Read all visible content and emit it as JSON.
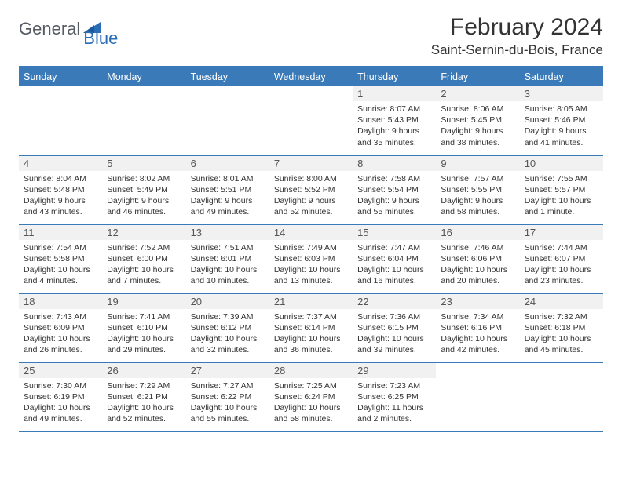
{
  "brand": {
    "part1": "General",
    "part2": "Blue"
  },
  "title": "February 2024",
  "location": "Saint-Sernin-du-Bois, France",
  "colors": {
    "header_bg": "#3a7ab8",
    "header_text": "#ffffff",
    "border": "#3a7ab8",
    "daynum_bg": "#f1f1f1",
    "text": "#333333"
  },
  "weekdays": [
    "Sunday",
    "Monday",
    "Tuesday",
    "Wednesday",
    "Thursday",
    "Friday",
    "Saturday"
  ],
  "weeks": [
    [
      {
        "n": "",
        "sr": "",
        "ss": "",
        "dl": ""
      },
      {
        "n": "",
        "sr": "",
        "ss": "",
        "dl": ""
      },
      {
        "n": "",
        "sr": "",
        "ss": "",
        "dl": ""
      },
      {
        "n": "",
        "sr": "",
        "ss": "",
        "dl": ""
      },
      {
        "n": "1",
        "sr": "Sunrise: 8:07 AM",
        "ss": "Sunset: 5:43 PM",
        "dl": "Daylight: 9 hours and 35 minutes."
      },
      {
        "n": "2",
        "sr": "Sunrise: 8:06 AM",
        "ss": "Sunset: 5:45 PM",
        "dl": "Daylight: 9 hours and 38 minutes."
      },
      {
        "n": "3",
        "sr": "Sunrise: 8:05 AM",
        "ss": "Sunset: 5:46 PM",
        "dl": "Daylight: 9 hours and 41 minutes."
      }
    ],
    [
      {
        "n": "4",
        "sr": "Sunrise: 8:04 AM",
        "ss": "Sunset: 5:48 PM",
        "dl": "Daylight: 9 hours and 43 minutes."
      },
      {
        "n": "5",
        "sr": "Sunrise: 8:02 AM",
        "ss": "Sunset: 5:49 PM",
        "dl": "Daylight: 9 hours and 46 minutes."
      },
      {
        "n": "6",
        "sr": "Sunrise: 8:01 AM",
        "ss": "Sunset: 5:51 PM",
        "dl": "Daylight: 9 hours and 49 minutes."
      },
      {
        "n": "7",
        "sr": "Sunrise: 8:00 AM",
        "ss": "Sunset: 5:52 PM",
        "dl": "Daylight: 9 hours and 52 minutes."
      },
      {
        "n": "8",
        "sr": "Sunrise: 7:58 AM",
        "ss": "Sunset: 5:54 PM",
        "dl": "Daylight: 9 hours and 55 minutes."
      },
      {
        "n": "9",
        "sr": "Sunrise: 7:57 AM",
        "ss": "Sunset: 5:55 PM",
        "dl": "Daylight: 9 hours and 58 minutes."
      },
      {
        "n": "10",
        "sr": "Sunrise: 7:55 AM",
        "ss": "Sunset: 5:57 PM",
        "dl": "Daylight: 10 hours and 1 minute."
      }
    ],
    [
      {
        "n": "11",
        "sr": "Sunrise: 7:54 AM",
        "ss": "Sunset: 5:58 PM",
        "dl": "Daylight: 10 hours and 4 minutes."
      },
      {
        "n": "12",
        "sr": "Sunrise: 7:52 AM",
        "ss": "Sunset: 6:00 PM",
        "dl": "Daylight: 10 hours and 7 minutes."
      },
      {
        "n": "13",
        "sr": "Sunrise: 7:51 AM",
        "ss": "Sunset: 6:01 PM",
        "dl": "Daylight: 10 hours and 10 minutes."
      },
      {
        "n": "14",
        "sr": "Sunrise: 7:49 AM",
        "ss": "Sunset: 6:03 PM",
        "dl": "Daylight: 10 hours and 13 minutes."
      },
      {
        "n": "15",
        "sr": "Sunrise: 7:47 AM",
        "ss": "Sunset: 6:04 PM",
        "dl": "Daylight: 10 hours and 16 minutes."
      },
      {
        "n": "16",
        "sr": "Sunrise: 7:46 AM",
        "ss": "Sunset: 6:06 PM",
        "dl": "Daylight: 10 hours and 20 minutes."
      },
      {
        "n": "17",
        "sr": "Sunrise: 7:44 AM",
        "ss": "Sunset: 6:07 PM",
        "dl": "Daylight: 10 hours and 23 minutes."
      }
    ],
    [
      {
        "n": "18",
        "sr": "Sunrise: 7:43 AM",
        "ss": "Sunset: 6:09 PM",
        "dl": "Daylight: 10 hours and 26 minutes."
      },
      {
        "n": "19",
        "sr": "Sunrise: 7:41 AM",
        "ss": "Sunset: 6:10 PM",
        "dl": "Daylight: 10 hours and 29 minutes."
      },
      {
        "n": "20",
        "sr": "Sunrise: 7:39 AM",
        "ss": "Sunset: 6:12 PM",
        "dl": "Daylight: 10 hours and 32 minutes."
      },
      {
        "n": "21",
        "sr": "Sunrise: 7:37 AM",
        "ss": "Sunset: 6:14 PM",
        "dl": "Daylight: 10 hours and 36 minutes."
      },
      {
        "n": "22",
        "sr": "Sunrise: 7:36 AM",
        "ss": "Sunset: 6:15 PM",
        "dl": "Daylight: 10 hours and 39 minutes."
      },
      {
        "n": "23",
        "sr": "Sunrise: 7:34 AM",
        "ss": "Sunset: 6:16 PM",
        "dl": "Daylight: 10 hours and 42 minutes."
      },
      {
        "n": "24",
        "sr": "Sunrise: 7:32 AM",
        "ss": "Sunset: 6:18 PM",
        "dl": "Daylight: 10 hours and 45 minutes."
      }
    ],
    [
      {
        "n": "25",
        "sr": "Sunrise: 7:30 AM",
        "ss": "Sunset: 6:19 PM",
        "dl": "Daylight: 10 hours and 49 minutes."
      },
      {
        "n": "26",
        "sr": "Sunrise: 7:29 AM",
        "ss": "Sunset: 6:21 PM",
        "dl": "Daylight: 10 hours and 52 minutes."
      },
      {
        "n": "27",
        "sr": "Sunrise: 7:27 AM",
        "ss": "Sunset: 6:22 PM",
        "dl": "Daylight: 10 hours and 55 minutes."
      },
      {
        "n": "28",
        "sr": "Sunrise: 7:25 AM",
        "ss": "Sunset: 6:24 PM",
        "dl": "Daylight: 10 hours and 58 minutes."
      },
      {
        "n": "29",
        "sr": "Sunrise: 7:23 AM",
        "ss": "Sunset: 6:25 PM",
        "dl": "Daylight: 11 hours and 2 minutes."
      },
      {
        "n": "",
        "sr": "",
        "ss": "",
        "dl": ""
      },
      {
        "n": "",
        "sr": "",
        "ss": "",
        "dl": ""
      }
    ]
  ]
}
